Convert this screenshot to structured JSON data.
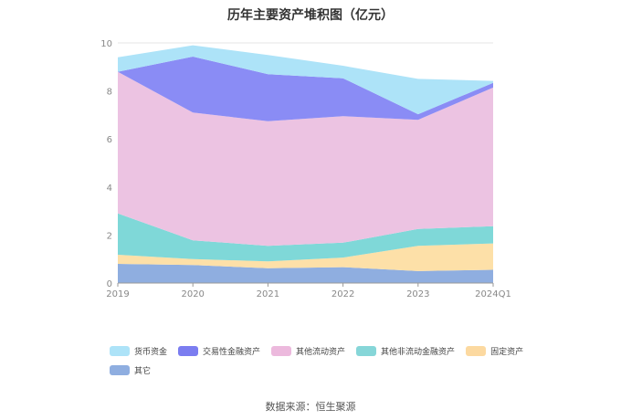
{
  "chart_data": {
    "type": "area",
    "title": "历年主要资产堆积图（亿元）",
    "categories": [
      "2019",
      "2020",
      "2021",
      "2022",
      "2023",
      "2024Q1"
    ],
    "y_ticks": [
      "0",
      "2",
      "4",
      "6",
      "8",
      "10"
    ],
    "ylim": [
      0,
      10
    ],
    "stacked": true,
    "grid": true,
    "legend_position": "bottom",
    "series": [
      {
        "name": "其它",
        "color": "#8faee0",
        "values": [
          0.8,
          0.75,
          0.62,
          0.66,
          0.5,
          0.55
        ]
      },
      {
        "name": "固定资产",
        "color": "#fde0a8",
        "values": [
          0.38,
          0.25,
          0.28,
          0.4,
          1.05,
          1.1
        ]
      },
      {
        "name": "其他非流动金融资产",
        "color": "#7fd8d8",
        "values": [
          1.72,
          0.78,
          0.65,
          0.62,
          0.7,
          0.72
        ]
      },
      {
        "name": "其他流动资产",
        "color": "#ecc3e2",
        "values": [
          5.9,
          5.32,
          5.19,
          5.27,
          4.55,
          5.77
        ]
      },
      {
        "name": "交易性金融资产",
        "color": "#8a8cf5",
        "values": [
          0.0,
          2.33,
          1.96,
          1.58,
          0.23,
          0.2
        ]
      },
      {
        "name": "货币资金",
        "color": "#ade3f8",
        "values": [
          0.6,
          0.47,
          0.8,
          0.52,
          1.47,
          0.08
        ]
      }
    ]
  },
  "legend_items": [
    {
      "label": "货币资金",
      "color": "#ade3f8"
    },
    {
      "label": "交易性金融资产",
      "color": "#7b7df0"
    },
    {
      "label": "其他流动资产",
      "color": "#ecb9dd"
    },
    {
      "label": "其他非流动金融资产",
      "color": "#86d6d8"
    },
    {
      "label": "固定资产",
      "color": "#fcd9a0"
    },
    {
      "label": "其它",
      "color": "#8faee0"
    }
  ],
  "footer": {
    "source": "数据来源：恒生聚源"
  }
}
